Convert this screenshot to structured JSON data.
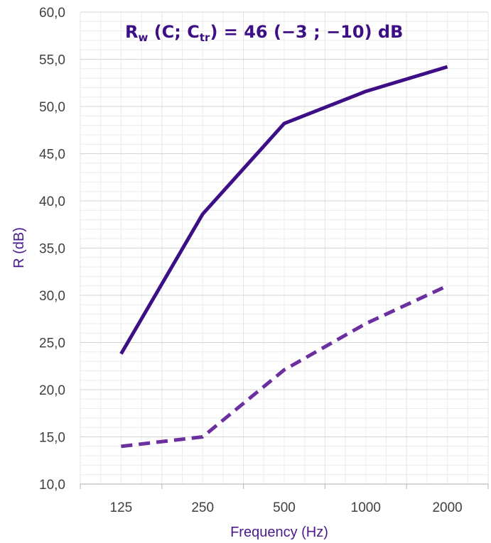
{
  "chart_data": {
    "type": "line",
    "title_parts": {
      "r": "R",
      "w": "w",
      "open": " (C; C",
      "tr": "tr",
      "close": ") = 46 (−3 ; −10) dB"
    },
    "xlabel": "Frequency (Hz)",
    "ylabel": "R (dB)",
    "categories": [
      "125",
      "250",
      "500",
      "1000",
      "2000"
    ],
    "ylim": [
      10,
      60
    ],
    "ytick_step": 5,
    "ytick_labels": [
      "10,0",
      "15,0",
      "20,0",
      "25,0",
      "30,0",
      "35,0",
      "40,0",
      "45,0",
      "50,0",
      "55,0",
      "60,0"
    ],
    "grid": true,
    "series": [
      {
        "values": [
          23.8,
          38.6,
          48.2,
          51.6,
          54.2
        ],
        "color": "#3d0f86",
        "style": "solid"
      },
      {
        "values": [
          14.0,
          15.0,
          22.1,
          27.0,
          31.0
        ],
        "color": "#6b2fa0",
        "style": "dashed"
      }
    ]
  }
}
